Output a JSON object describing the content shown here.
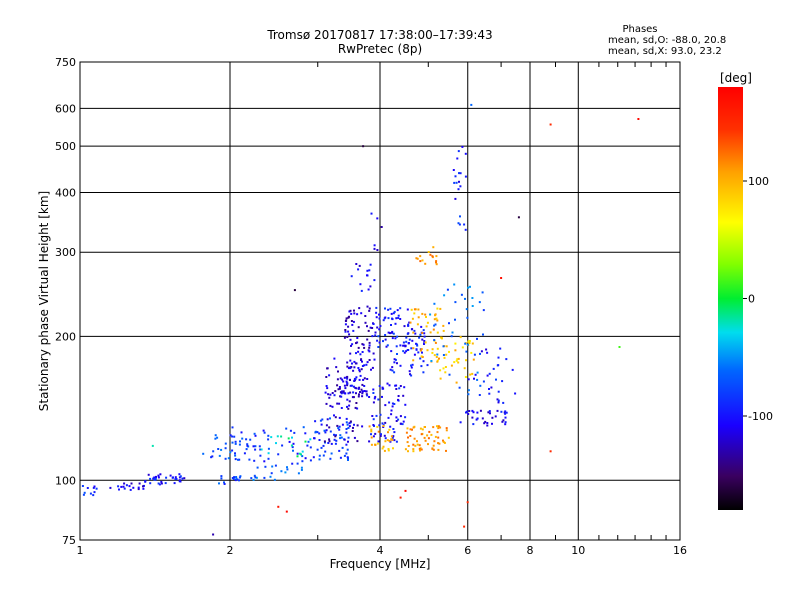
{
  "chart_data": {
    "type": "scatter",
    "title": "Tromsø 20170817 17:38:00–17:39:43",
    "subtitle": "RwPretec (8p)",
    "xlabel": "Frequency [MHz]",
    "ylabel": "Stationary phase Virtual Height [km]",
    "x_scale": "log",
    "y_scale": "log",
    "xlim": [
      1,
      16
    ],
    "ylim": [
      75,
      750
    ],
    "x_ticks": [
      1,
      2,
      4,
      6,
      8,
      10,
      16
    ],
    "y_ticks": [
      75,
      100,
      200,
      300,
      400,
      500,
      600,
      750
    ],
    "grid": true,
    "phases": {
      "title": "Phases",
      "line_o": "mean, sd,O: -88.0, 20.8",
      "line_x": "mean, sd,X: 93.0, 23.2"
    },
    "colorbar": {
      "label": "[deg]",
      "ticks": [
        100,
        0,
        -100
      ],
      "range": [
        -180,
        180
      ]
    },
    "clusters": [
      {
        "x": [
          1.0,
          1.08
        ],
        "y": [
          92,
          98
        ],
        "phase": -95,
        "n": 10
      },
      {
        "x": [
          1.15,
          1.35
        ],
        "y": [
          95,
          100
        ],
        "phase": -110,
        "n": 18
      },
      {
        "x": [
          1.35,
          1.65
        ],
        "y": [
          98,
          103
        ],
        "phase": -105,
        "n": 35
      },
      {
        "x": [
          1.75,
          2.2
        ],
        "y": [
          110,
          125
        ],
        "phase": -80,
        "n": 30
      },
      {
        "x": [
          1.9,
          2.1
        ],
        "y": [
          98,
          103
        ],
        "phase": -85,
        "n": 15
      },
      {
        "x": [
          2.2,
          2.8
        ],
        "y": [
          100,
          108
        ],
        "phase": -70,
        "n": 20
      },
      {
        "x": [
          2.0,
          2.9
        ],
        "y": [
          108,
          130
        ],
        "phase": -90,
        "n": 45
      },
      {
        "x": [
          2.3,
          2.9
        ],
        "y": [
          112,
          125
        ],
        "phase": -20,
        "n": 15
      },
      {
        "x": [
          2.9,
          3.5
        ],
        "y": [
          110,
          135
        ],
        "phase": -90,
        "n": 60
      },
      {
        "x": [
          3.1,
          3.7
        ],
        "y": [
          120,
          180
        ],
        "phase": -120,
        "n": 80
      },
      {
        "x": [
          3.3,
          3.8
        ],
        "y": [
          145,
          165
        ],
        "phase": -115,
        "n": 50
      },
      {
        "x": [
          3.4,
          3.9
        ],
        "y": [
          170,
          230
        ],
        "phase": -120,
        "n": 80
      },
      {
        "x": [
          3.5,
          3.9
        ],
        "y": [
          230,
          290
        ],
        "phase": -110,
        "n": 15
      },
      {
        "x": [
          3.8,
          4.5
        ],
        "y": [
          120,
          160
        ],
        "phase": -105,
        "n": 70
      },
      {
        "x": [
          3.9,
          4.6
        ],
        "y": [
          190,
          230
        ],
        "phase": -100,
        "n": 60
      },
      {
        "x": [
          4.2,
          5.0
        ],
        "y": [
          165,
          210
        ],
        "phase": -100,
        "n": 60
      },
      {
        "x": [
          3.8,
          4.3
        ],
        "y": [
          115,
          130
        ],
        "phase": 100,
        "n": 25
      },
      {
        "x": [
          4.5,
          5.5
        ],
        "y": [
          115,
          130
        ],
        "phase": 110,
        "n": 60
      },
      {
        "x": [
          4.6,
          5.4
        ],
        "y": [
          175,
          230
        ],
        "phase": 100,
        "n": 45
      },
      {
        "x": [
          4.7,
          5.2
        ],
        "y": [
          280,
          310
        ],
        "phase": 110,
        "n": 15
      },
      {
        "x": [
          5.0,
          6.2
        ],
        "y": [
          160,
          200
        ],
        "phase": 90,
        "n": 40
      },
      {
        "x": [
          5.0,
          6.5
        ],
        "y": [
          150,
          260
        ],
        "phase": -70,
        "n": 40
      },
      {
        "x": [
          5.8,
          7.2
        ],
        "y": [
          130,
          140
        ],
        "phase": -110,
        "n": 35
      },
      {
        "x": [
          6.0,
          7.5
        ],
        "y": [
          145,
          190
        ],
        "phase": -100,
        "n": 30
      },
      {
        "x": [
          5.6,
          6.0
        ],
        "y": [
          330,
          500
        ],
        "phase": -100,
        "n": 20
      },
      {
        "x": [
          3.8,
          4.1
        ],
        "y": [
          300,
          370
        ],
        "phase": -115,
        "n": 6
      }
    ],
    "outliers": [
      {
        "x": 3.7,
        "y": 500,
        "phase": -160
      },
      {
        "x": 6.1,
        "y": 610,
        "phase": -70
      },
      {
        "x": 8.8,
        "y": 555,
        "phase": 150
      },
      {
        "x": 13.2,
        "y": 570,
        "phase": 175
      },
      {
        "x": 8.8,
        "y": 115,
        "phase": 150
      },
      {
        "x": 12.1,
        "y": 190,
        "phase": 15
      },
      {
        "x": 7.6,
        "y": 355,
        "phase": -160
      },
      {
        "x": 7.0,
        "y": 265,
        "phase": 170
      },
      {
        "x": 2.5,
        "y": 88,
        "phase": 165
      },
      {
        "x": 2.6,
        "y": 86,
        "phase": 175
      },
      {
        "x": 1.85,
        "y": 77,
        "phase": -130
      },
      {
        "x": 2.7,
        "y": 250,
        "phase": -160
      },
      {
        "x": 1.4,
        "y": 118,
        "phase": -20
      },
      {
        "x": 5.9,
        "y": 80,
        "phase": 150
      },
      {
        "x": 6.0,
        "y": 90,
        "phase": 150
      },
      {
        "x": 4.5,
        "y": 95,
        "phase": 175
      },
      {
        "x": 4.4,
        "y": 92,
        "phase": 160
      }
    ]
  }
}
